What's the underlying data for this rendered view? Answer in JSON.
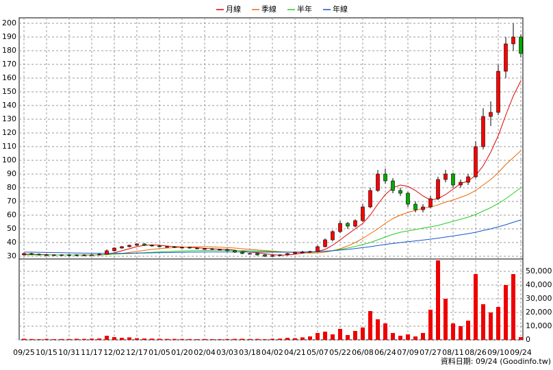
{
  "chart_data": {
    "type": "candlestick",
    "categories": [
      "09/25",
      null,
      null,
      "10/15",
      null,
      null,
      "10/31",
      null,
      null,
      "11/17",
      null,
      null,
      "12/02",
      null,
      null,
      "12/17",
      null,
      null,
      "01/05",
      null,
      null,
      "01/20",
      null,
      null,
      "02/04",
      null,
      null,
      "03/03",
      null,
      null,
      "03/18",
      null,
      null,
      "04/02",
      null,
      null,
      "04/21",
      null,
      null,
      "05/07",
      null,
      null,
      "05/22",
      null,
      null,
      "06/08",
      null,
      null,
      "06/24",
      null,
      null,
      "07/09",
      null,
      null,
      "07/27",
      null,
      null,
      "08/11",
      null,
      null,
      "08/26",
      null,
      null,
      "09/10",
      null,
      null,
      "09/24"
    ],
    "ohlc": [
      [
        31,
        32.5,
        30.5,
        32
      ],
      [
        32,
        32.5,
        31,
        31.5
      ],
      [
        31.5,
        32,
        30.5,
        31
      ],
      [
        31,
        31.5,
        30.5,
        31
      ],
      [
        31,
        31.5,
        30.5,
        31
      ],
      [
        31,
        31.5,
        30.5,
        31
      ],
      [
        31,
        31.5,
        30,
        31
      ],
      [
        31,
        31.5,
        30,
        30.5
      ],
      [
        30.5,
        31.5,
        30,
        31
      ],
      [
        31,
        31.5,
        30.5,
        31
      ],
      [
        31,
        32,
        30.5,
        31.5
      ],
      [
        31.5,
        35,
        31.5,
        34
      ],
      [
        34,
        36.5,
        33.5,
        36
      ],
      [
        36,
        37.5,
        35.5,
        37
      ],
      [
        37,
        38.5,
        36.5,
        38
      ],
      [
        38,
        39.5,
        37.5,
        39
      ],
      [
        39,
        39.5,
        37.5,
        38
      ],
      [
        38,
        38.5,
        37,
        37.5
      ],
      [
        37.5,
        38,
        36.5,
        37
      ],
      [
        37,
        37.5,
        36.5,
        37
      ],
      [
        37,
        37.5,
        36,
        36.5
      ],
      [
        36.5,
        37,
        36,
        36.5
      ],
      [
        36.5,
        37,
        35.5,
        36
      ],
      [
        36,
        36.5,
        35,
        35.5
      ],
      [
        35.5,
        36,
        35,
        35.5
      ],
      [
        35.5,
        36,
        34.5,
        35
      ],
      [
        35,
        35.5,
        34.5,
        35
      ],
      [
        35,
        35.5,
        33.5,
        34
      ],
      [
        34,
        34.5,
        32.5,
        33
      ],
      [
        33,
        33.5,
        31.5,
        32
      ],
      [
        32,
        32.5,
        31.5,
        32
      ],
      [
        32,
        32.5,
        30.5,
        31
      ],
      [
        31,
        31.5,
        29.5,
        30
      ],
      [
        30,
        31,
        29.5,
        30.5
      ],
      [
        30.5,
        31.5,
        30,
        31
      ],
      [
        31,
        32.5,
        30.5,
        32
      ],
      [
        32,
        33.5,
        31.5,
        33
      ],
      [
        33,
        34,
        32.5,
        33
      ],
      [
        33,
        34,
        32.5,
        33.5
      ],
      [
        33.5,
        38,
        33.5,
        37
      ],
      [
        37,
        43,
        36.5,
        42
      ],
      [
        42,
        49,
        41,
        48
      ],
      [
        48,
        56,
        47,
        54
      ],
      [
        54,
        55,
        50,
        52
      ],
      [
        52,
        57,
        51,
        56
      ],
      [
        56,
        68,
        55,
        66
      ],
      [
        66,
        80,
        65,
        78
      ],
      [
        78,
        93,
        77,
        90
      ],
      [
        90,
        94,
        83,
        85
      ],
      [
        85,
        87,
        76,
        78
      ],
      [
        78,
        80,
        74,
        76
      ],
      [
        76,
        77,
        66,
        68
      ],
      [
        68,
        70,
        62,
        64
      ],
      [
        64,
        68,
        62,
        66
      ],
      [
        66,
        74,
        65,
        72
      ],
      [
        72,
        88,
        71,
        86
      ],
      [
        86,
        93,
        84,
        90
      ],
      [
        90,
        91,
        80,
        82
      ],
      [
        82,
        86,
        80,
        84
      ],
      [
        84,
        90,
        82,
        88
      ],
      [
        88,
        114,
        87,
        110
      ],
      [
        110,
        138,
        108,
        132
      ],
      [
        132,
        143,
        125,
        135
      ],
      [
        135,
        170,
        133,
        165
      ],
      [
        165,
        190,
        160,
        185
      ],
      [
        185,
        200,
        180,
        190
      ],
      [
        190,
        192,
        175,
        178
      ]
    ],
    "up_color": "#ff0000",
    "down_color": "#00aa00",
    "series": [
      {
        "name": "月線",
        "color": "#dd0000",
        "values": [
          31.5,
          31.5,
          31.3,
          31.2,
          31,
          31,
          31,
          31,
          30.9,
          30.9,
          31,
          31.5,
          32.5,
          34,
          35.5,
          37,
          38,
          38.3,
          38,
          37.5,
          37,
          36.8,
          36.5,
          36.2,
          35.8,
          35.5,
          35.2,
          35,
          34.5,
          33.8,
          33,
          32.5,
          31.8,
          31.2,
          30.8,
          31,
          31.5,
          32.2,
          33,
          33.5,
          35,
          38,
          42,
          46,
          50,
          54,
          60,
          68,
          75,
          80,
          82,
          81,
          78,
          74,
          71,
          72,
          75,
          79,
          83,
          85,
          89,
          96,
          106,
          118,
          133,
          147,
          158
        ]
      },
      {
        "name": "季線",
        "color": "#ee6600",
        "values": [
          31,
          31,
          31,
          31,
          31,
          31,
          31,
          31,
          31,
          31,
          31,
          31.2,
          31.6,
          32,
          32.8,
          33.5,
          34.3,
          35,
          35.6,
          36,
          36.3,
          36.6,
          36.8,
          37,
          37,
          36.8,
          36.6,
          36.3,
          36,
          35.5,
          35,
          34.6,
          34.2,
          33.8,
          33.4,
          33,
          32.8,
          32.5,
          32.3,
          32.5,
          33,
          34,
          35.5,
          37.5,
          40,
          43,
          46.5,
          50,
          54,
          57.5,
          60,
          62,
          63.5,
          65,
          66,
          67.5,
          69.5,
          71,
          73,
          75,
          78,
          82,
          86,
          91,
          97,
          102,
          107
        ]
      },
      {
        "name": "半年",
        "color": "#22cc22",
        "values": [
          31,
          31,
          31,
          31,
          31,
          31,
          31,
          31,
          31,
          31,
          31,
          31.3,
          31.5,
          31.8,
          32,
          32.3,
          32.6,
          32.9,
          33.2,
          33.4,
          33.6,
          33.8,
          34,
          34.1,
          34.2,
          34.3,
          34.3,
          34.3,
          34.2,
          34.1,
          34,
          33.8,
          33.6,
          33.4,
          33.2,
          33.1,
          33,
          33,
          33,
          33.2,
          33.6,
          34.2,
          35,
          36,
          37.2,
          38.5,
          40,
          42,
          44,
          46,
          47.5,
          48.5,
          49.5,
          50.5,
          51.5,
          52.5,
          54,
          55.5,
          57,
          58.5,
          60.5,
          63,
          65.5,
          68.5,
          72,
          76,
          80
        ]
      },
      {
        "name": "年線",
        "color": "#1155cc",
        "values": [
          33,
          33,
          32.9,
          32.8,
          32.7,
          32.6,
          32.5,
          32.4,
          32.3,
          32.2,
          32.1,
          32.1,
          32.1,
          32.1,
          32.2,
          32.3,
          32.4,
          32.5,
          32.6,
          32.7,
          32.8,
          32.9,
          33,
          33,
          33.1,
          33.1,
          33.1,
          33.1,
          33.1,
          33.1,
          33.1,
          33,
          33,
          33,
          33,
          33,
          33,
          33.1,
          33.2,
          33.4,
          33.7,
          34,
          34.5,
          35,
          35.6,
          36.3,
          37,
          37.8,
          38.6,
          39.3,
          40,
          40.6,
          41.2,
          41.8,
          42.5,
          43.2,
          44,
          44.8,
          45.6,
          46.5,
          47.5,
          48.8,
          50,
          51.5,
          53,
          54.8,
          56.5
        ]
      }
    ],
    "volume": [
      800,
      600,
      500,
      700,
      500,
      600,
      600,
      800,
      700,
      900,
      1000,
      3000,
      2000,
      1500,
      1800,
      1200,
      1000,
      900,
      800,
      700,
      700,
      600,
      600,
      500,
      600,
      500,
      500,
      600,
      700,
      800,
      600,
      700,
      500,
      800,
      900,
      1500,
      1200,
      1800,
      2500,
      5000,
      6000,
      4000,
      8000,
      3500,
      6500,
      9000,
      21000,
      15000,
      12000,
      5000,
      3000,
      4000,
      2500,
      5000,
      22000,
      58000,
      30000,
      12000,
      10000,
      14000,
      48000,
      26000,
      20000,
      24000,
      40000,
      48000,
      2000
    ],
    "volume_color": "#ee0000",
    "ylim": [
      28,
      204
    ],
    "yticks": [
      30,
      40,
      50,
      60,
      70,
      80,
      90,
      100,
      110,
      120,
      130,
      140,
      150,
      160,
      170,
      180,
      190,
      200
    ],
    "y2lim": [
      0,
      59000
    ],
    "y2ticks": [
      0,
      {
        "value": 10000,
        "label": "10,000"
      },
      {
        "value": 20000,
        "label": "20,000"
      },
      {
        "value": 30000,
        "label": "30,000"
      },
      {
        "value": 40000,
        "label": "40,000"
      },
      {
        "value": 50000,
        "label": "50,000"
      }
    ],
    "grid": true,
    "footer": "資料日期: 09/24 (Goodinfo.tw)"
  }
}
